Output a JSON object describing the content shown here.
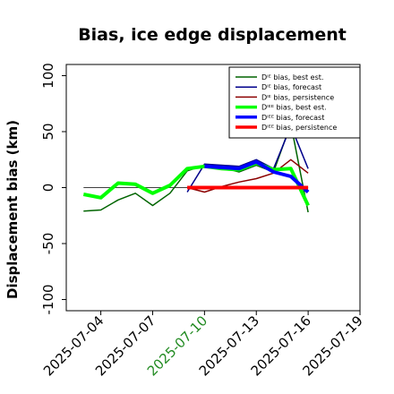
{
  "chart_data": {
    "type": "line",
    "title": "Bias, ice edge displacement",
    "xlabel": "",
    "ylabel": "Displacement bias (km)",
    "xlim": [
      "2025-07-02",
      "2025-07-19"
    ],
    "ylim": [
      -110,
      110
    ],
    "yticks": [
      -100,
      -50,
      0,
      50,
      100
    ],
    "xticks": [
      "2025-07-04",
      "2025-07-07",
      "2025-07-10",
      "2025-07-13",
      "2025-07-16",
      "2025-07-19"
    ],
    "highlight_tick": "2025-07-10",
    "highlight_color": "#228b22",
    "grid": false,
    "zero_line": true,
    "legend_position": "top-right",
    "series": [
      {
        "name": "Dᴵᴱ bias, best est.",
        "color": "#006400",
        "width": 1.5,
        "x": [
          "2025-07-03",
          "2025-07-04",
          "2025-07-05",
          "2025-07-06",
          "2025-07-07",
          "2025-07-08",
          "2025-07-09",
          "2025-07-10",
          "2025-07-11",
          "2025-07-12",
          "2025-07-13",
          "2025-07-14",
          "2025-07-15",
          "2025-07-16"
        ],
        "y": [
          -21,
          -20,
          -11,
          -5,
          -16,
          -5,
          15,
          20,
          18,
          14,
          20,
          14,
          57,
          -22
        ]
      },
      {
        "name": "Dᴵᴱ bias, forecast",
        "color": "#00008b",
        "width": 1.5,
        "x": [
          "2025-07-09",
          "2025-07-10",
          "2025-07-11",
          "2025-07-12",
          "2025-07-13",
          "2025-07-14",
          "2025-07-15",
          "2025-07-16"
        ],
        "y": [
          -4,
          21,
          20,
          19,
          25,
          17,
          55,
          17
        ]
      },
      {
        "name": "Dᴵᴱ bias, persistence",
        "color": "#8b0000",
        "width": 1.5,
        "x": [
          "2025-07-09",
          "2025-07-10",
          "2025-07-11",
          "2025-07-12",
          "2025-07-13",
          "2025-07-14",
          "2025-07-15",
          "2025-07-16"
        ],
        "y": [
          0,
          -4,
          1,
          5,
          8,
          13,
          25,
          13
        ]
      },
      {
        "name": "Dᴵᴱᴱ bias, best est.",
        "color": "#00ff00",
        "width": 4,
        "x": [
          "2025-07-03",
          "2025-07-04",
          "2025-07-05",
          "2025-07-06",
          "2025-07-07",
          "2025-07-08",
          "2025-07-09",
          "2025-07-10",
          "2025-07-11",
          "2025-07-12",
          "2025-07-13",
          "2025-07-14",
          "2025-07-15",
          "2025-07-16"
        ],
        "y": [
          -6,
          -9,
          4,
          3,
          -5,
          2,
          17,
          19,
          17,
          16,
          22,
          16,
          17,
          -16
        ]
      },
      {
        "name": "Dᴵᴱᴱ bias, forecast",
        "color": "#0000ff",
        "width": 4,
        "x": [
          "2025-07-10",
          "2025-07-11",
          "2025-07-12",
          "2025-07-13",
          "2025-07-14",
          "2025-07-15",
          "2025-07-16"
        ],
        "y": [
          19,
          18,
          17,
          23,
          14,
          10,
          -4
        ]
      },
      {
        "name": "Dᴵᴱᴱ bias, persistence",
        "color": "#ff0000",
        "width": 4,
        "x": [
          "2025-07-09",
          "2025-07-10",
          "2025-07-11",
          "2025-07-12",
          "2025-07-13",
          "2025-07-14",
          "2025-07-15",
          "2025-07-16"
        ],
        "y": [
          0,
          0,
          0,
          0,
          0,
          0,
          0,
          0
        ]
      }
    ]
  }
}
